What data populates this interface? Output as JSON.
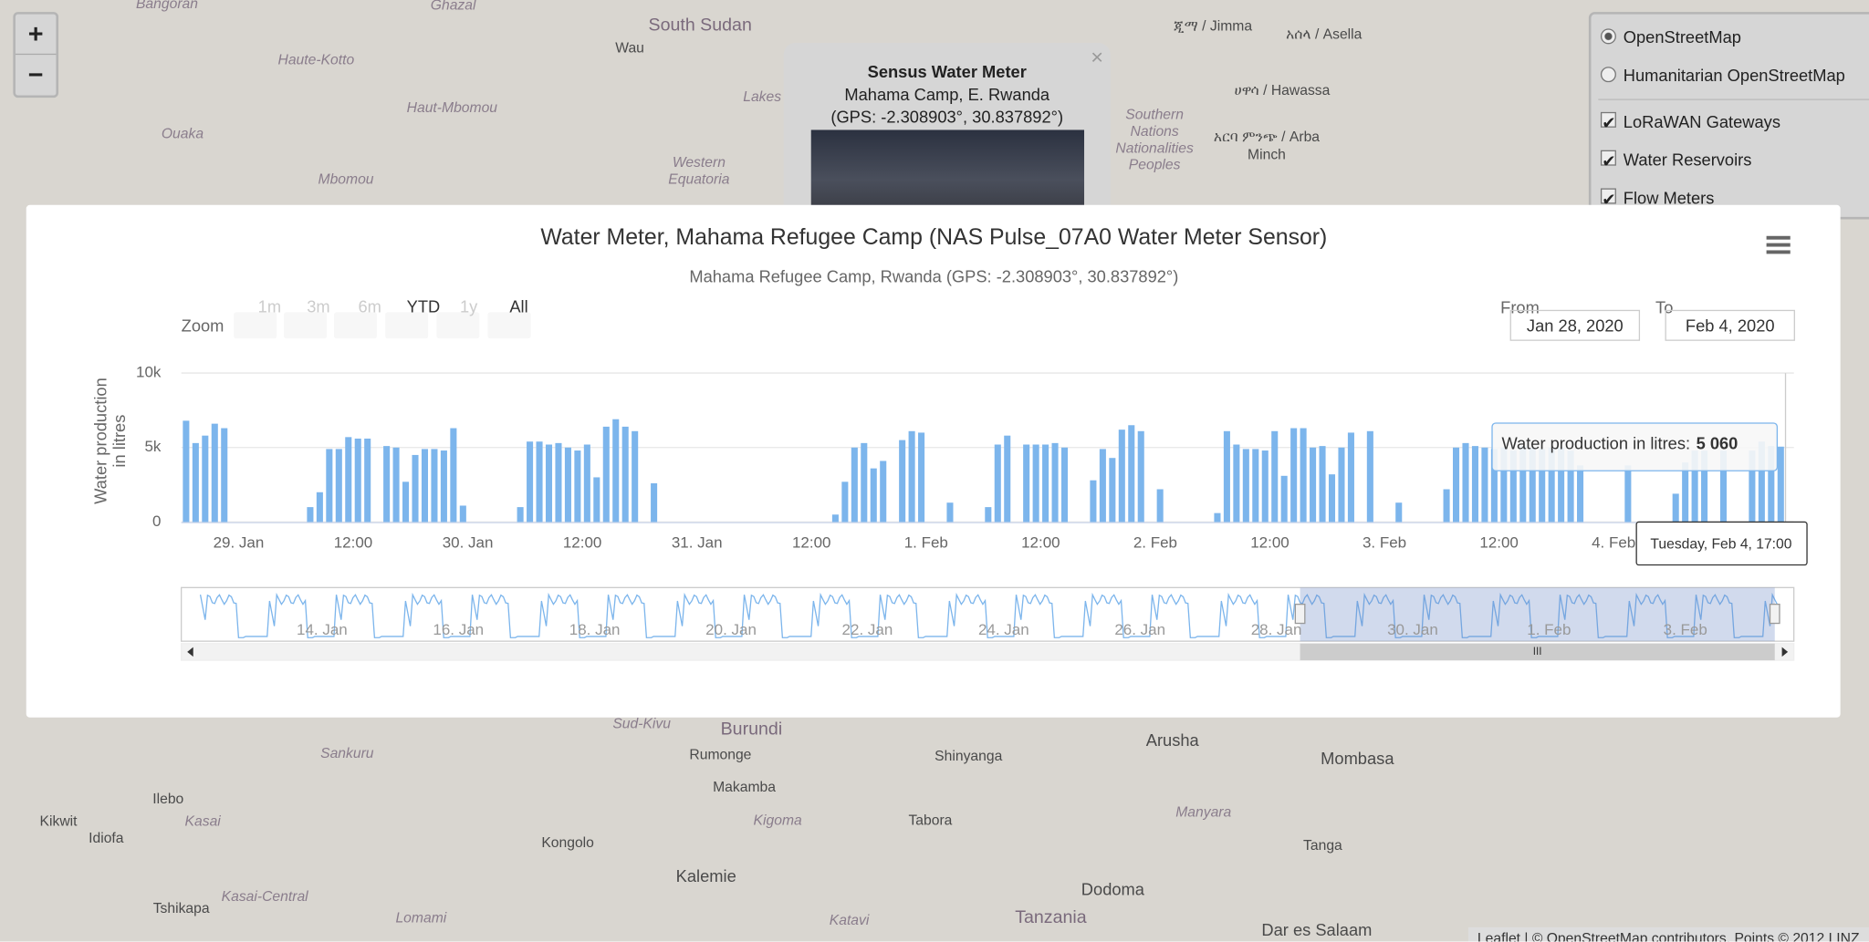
{
  "map": {
    "labels": [
      "Bangoran",
      "Ghazal",
      "South Sudan",
      "Wau",
      "Haute-Kotto",
      "Haut-Mbomou",
      "Ouaka",
      "Mbomou",
      "Western Equatoria",
      "Lakes",
      "ጂማ / Jimma",
      "አሰላ / Asella",
      "ሀዋሳ / Hawassa",
      "Southern Nations Nationalities Peoples",
      "አርባ ምንጭ / Arba Minch",
      "Burundi",
      "Rumonge",
      "Makamba",
      "Kigoma",
      "Kalemie",
      "Dodoma",
      "Tanzania",
      "Mombasa",
      "Arusha",
      "Shinyanga",
      "Tabora",
      "Kongolo",
      "Ilebo",
      "Kikwit",
      "Idiofa",
      "Tshikapa",
      "Sankuru",
      "Lomami",
      "Kasai-Central",
      "Manyara",
      "Tanga",
      "Dar es Salaam",
      "Katavi",
      "Sud-Kivu",
      "Kasai"
    ],
    "zoom_in": "+",
    "zoom_out": "−",
    "attribution": "Leaflet | © OpenStreetMap contributors, Points © 2012 LINZ"
  },
  "layers": {
    "base": [
      "OpenStreetMap",
      "Humanitarian OpenStreetMap"
    ],
    "overlays": [
      "LoRaWAN Gateways",
      "Water Reservoirs",
      "Flow Meters"
    ]
  },
  "popup": {
    "title": "Sensus Water Meter",
    "lines": [
      "Mahama Camp, E. Rwanda",
      "(GPS: -2.308903°, 30.837892°)"
    ],
    "close": "×"
  },
  "range_selector": {
    "zoom_label": "Zoom",
    "buttons": [
      "1m",
      "3m",
      "6m",
      "YTD",
      "1y",
      "All"
    ],
    "from_label": "From",
    "from": "Jan 28, 2020",
    "to_label": "To",
    "to": "Feb 4, 2020"
  },
  "navigator": {
    "labels": [
      "14. Jan",
      "16. Jan",
      "18. Jan",
      "20. Jan",
      "22. Jan",
      "24. Jan",
      "26. Jan",
      "28. Jan",
      "30. Jan",
      "1. Feb",
      "3. Feb"
    ],
    "scroll_grip": "III"
  },
  "tooltip": {
    "label": "Water production in litres:",
    "value": "5 060",
    "x": "Tuesday, Feb 4, 17:00"
  },
  "chart_data": {
    "type": "bar",
    "title": "Water Meter, Mahama Refugee Camp (NAS Pulse_07A0 Water Meter Sensor)",
    "subtitle": "Mahama Refugee Camp, Rwanda (GPS: -2.308903°, 30.837892°)",
    "y_axis_title": "Water production in litres",
    "categories": [
      null,
      null,
      null,
      null,
      null,
      null,
      "29. Jan",
      null,
      null,
      null,
      null,
      null,
      null,
      null,
      null,
      null,
      null,
      null,
      "12:00",
      null,
      null,
      null,
      null,
      null,
      null,
      null,
      null,
      null,
      null,
      null,
      "30. Jan",
      null,
      null,
      null,
      null,
      null,
      null,
      null,
      null,
      null,
      null,
      null,
      "12:00",
      null,
      null,
      null,
      null,
      null,
      null,
      null,
      null,
      null,
      null,
      null,
      "31. Jan",
      null,
      null,
      null,
      null,
      null,
      null,
      null,
      null,
      null,
      null,
      null,
      "12:00",
      null,
      null,
      null,
      null,
      null,
      null,
      null,
      null,
      null,
      null,
      null,
      "1. Feb",
      null,
      null,
      null,
      null,
      null,
      null,
      null,
      null,
      null,
      null,
      null,
      "12:00",
      null,
      null,
      null,
      null,
      null,
      null,
      null,
      null,
      null,
      null,
      null,
      "2. Feb",
      null,
      null,
      null,
      null,
      null,
      null,
      null,
      null,
      null,
      null,
      null,
      "12:00",
      null,
      null,
      null,
      null,
      null,
      null,
      null,
      null,
      null,
      null,
      null,
      "3. Feb",
      null,
      null,
      null,
      null,
      null,
      null,
      null,
      null,
      null,
      null,
      null,
      "12:00",
      null,
      null,
      null,
      null,
      null,
      null,
      null,
      null,
      null,
      null,
      null,
      "4. Feb",
      null,
      null,
      null,
      null,
      null,
      null,
      null,
      null,
      null,
      null,
      null,
      null,
      null,
      null,
      null,
      null,
      null
    ],
    "series": [
      {
        "name": "Water production in litres",
        "color": "#7cb5ec",
        "values": [
          6800,
          5300,
          5800,
          6600,
          6300,
          0,
          0,
          0,
          0,
          0,
          0,
          0,
          0,
          1000,
          2000,
          4900,
          4900,
          5700,
          5600,
          5600,
          0,
          5100,
          5000,
          2700,
          4500,
          4900,
          4900,
          4800,
          6300,
          1100,
          0,
          0,
          0,
          0,
          0,
          1000,
          5400,
          5400,
          5200,
          5300,
          5000,
          4800,
          5200,
          3000,
          6400,
          6900,
          6400,
          6100,
          0,
          2600,
          0,
          0,
          0,
          0,
          0,
          0,
          0,
          0,
          0,
          0,
          0,
          0,
          0,
          0,
          0,
          0,
          0,
          0,
          500,
          2700,
          5000,
          5300,
          3600,
          4100,
          0,
          5500,
          6100,
          6000,
          0,
          0,
          1300,
          0,
          0,
          0,
          1000,
          5200,
          5800,
          0,
          5200,
          5200,
          5200,
          5300,
          5000,
          0,
          0,
          2800,
          4900,
          4300,
          6200,
          6500,
          6100,
          0,
          2200,
          0,
          0,
          0,
          0,
          0,
          600,
          6100,
          5200,
          4900,
          4900,
          4800,
          6100,
          3100,
          6300,
          6300,
          5000,
          5100,
          3200,
          5000,
          6000,
          0,
          6100,
          0,
          0,
          1300,
          0,
          0,
          0,
          0,
          2200,
          5000,
          5300,
          5100,
          5000,
          4900,
          5000,
          4800,
          5100,
          5000,
          4900,
          5000,
          5000,
          4800,
          3800,
          0,
          0,
          0,
          0,
          3800,
          0,
          0,
          0,
          0,
          1900,
          4000,
          4800,
          4800,
          0,
          4800,
          0,
          0,
          4800,
          5400,
          5100,
          5060
        ]
      }
    ],
    "ylim": [
      0,
      10000
    ],
    "yticks": [
      0,
      {
        "value": 5000,
        "label": "5k"
      },
      {
        "value": 10000,
        "label": "10k"
      }
    ],
    "grid": true
  }
}
